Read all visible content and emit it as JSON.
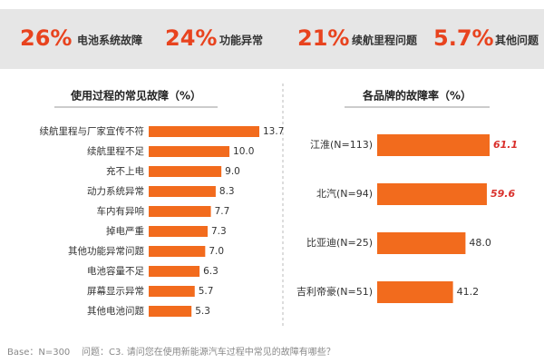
{
  "header": {
    "stats": [
      {
        "value": "26%",
        "label": "电池系统故障"
      },
      {
        "value": "24%",
        "label": "功能异常"
      },
      {
        "value": "21%",
        "label": "续航里程问题"
      },
      {
        "value": "5.7%",
        "label": "其他问题"
      }
    ]
  },
  "chart_data": [
    {
      "type": "bar",
      "orientation": "horizontal",
      "title": "使用过程的常见故障（%）",
      "color": "#f26b1d",
      "categories": [
        "续航里程与厂家宣传不符",
        "续航里程不足",
        "充不上电",
        "动力系统异常",
        "车内有异响",
        "掉电严重",
        "其他功能异常问题",
        "电池容量不足",
        "屏幕显示异常",
        "其他电池问题"
      ],
      "values": [
        13.7,
        10.0,
        9.0,
        8.3,
        7.7,
        7.3,
        7.0,
        6.3,
        5.7,
        5.3
      ],
      "value_labels": [
        "13.7",
        "10.0",
        "9.0",
        "8.3",
        "7.7",
        "7.3",
        "7.0",
        "6.3",
        "5.7",
        "5.3"
      ]
    },
    {
      "type": "bar",
      "orientation": "horizontal",
      "title": "各品牌的故障率（%）",
      "color": "#f26b1d",
      "categories": [
        "江淮(N=113)",
        "北汽(N=94)",
        "比亚迪(N=25)",
        "吉利帝豪(N=51)"
      ],
      "values": [
        61.1,
        59.6,
        48.0,
        41.2
      ],
      "value_labels": [
        "61.1",
        "59.6",
        "48.0",
        "41.2"
      ],
      "value_label_colors": [
        "#d9302c",
        "#d9302c",
        "#333333",
        "#333333"
      ]
    }
  ],
  "footer": {
    "base": "Base：N=300",
    "question": "问题：C3. 请问您在使用新能源汽车过程中常见的故障有哪些？"
  }
}
